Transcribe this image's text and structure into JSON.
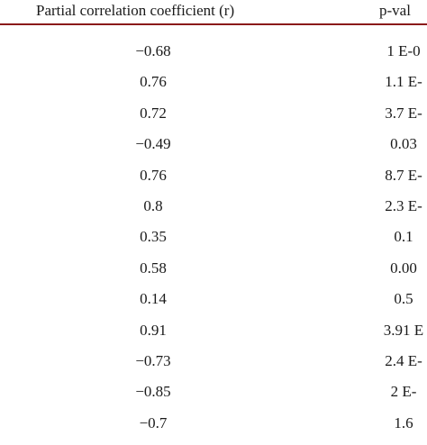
{
  "table": {
    "headers": {
      "r": "Partial correlation coefficient (r)",
      "p": "p-val"
    },
    "rows": [
      {
        "r": "−0.68",
        "p": "1 E-0"
      },
      {
        "r": "0.76",
        "p": "1.1 E-"
      },
      {
        "r": "0.72",
        "p": "3.7 E-"
      },
      {
        "r": "−0.49",
        "p": "0.03"
      },
      {
        "r": "0.76",
        "p": "8.7 E-"
      },
      {
        "r": "0.8",
        "p": "2.3 E-"
      },
      {
        "r": "0.35",
        "p": "0.1"
      },
      {
        "r": "0.58",
        "p": "0.00"
      },
      {
        "r": "0.14",
        "p": "0.5"
      },
      {
        "r": "0.91",
        "p": "3.91 E"
      },
      {
        "r": "−0.73",
        "p": "2.4 E-"
      },
      {
        "r": "−0.85",
        "p": "2 E-"
      },
      {
        "r": "−0.7",
        "p": "1.6"
      }
    ],
    "rule_color": "#8a1a1a"
  }
}
